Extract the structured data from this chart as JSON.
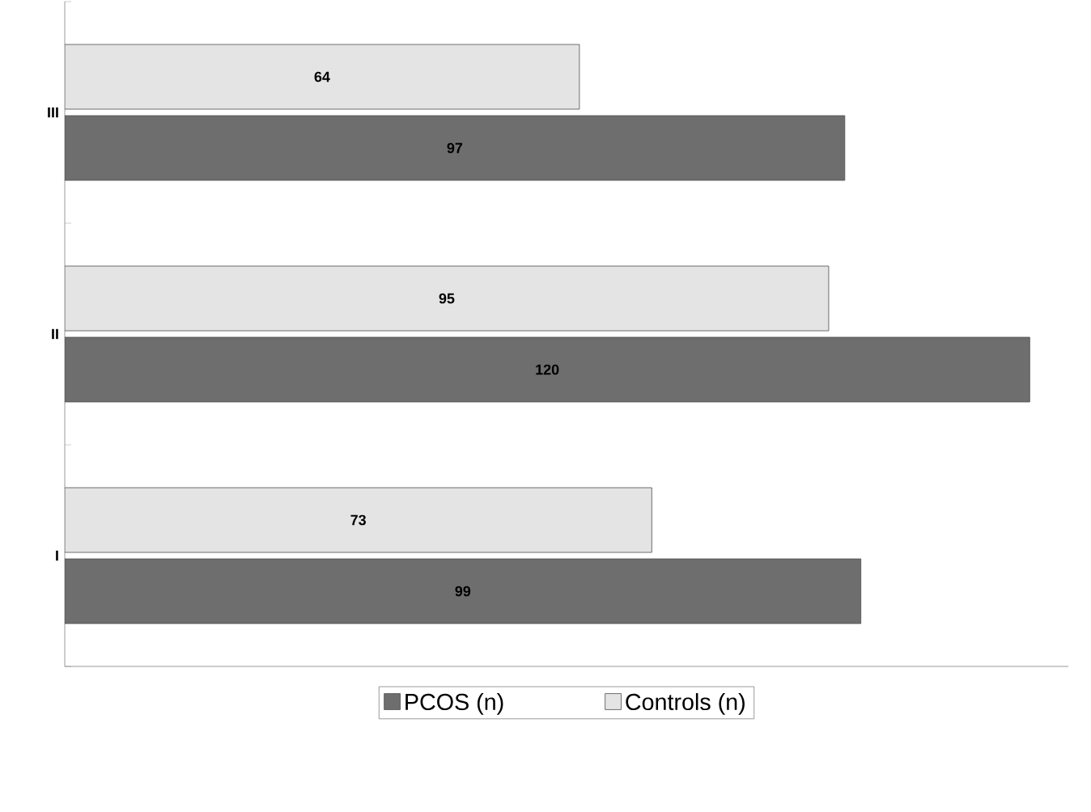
{
  "chart_data": {
    "type": "bar",
    "orientation": "horizontal",
    "categories": [
      "III",
      "II",
      "I"
    ],
    "series": [
      {
        "name": "PCOS (n)",
        "color": "#6e6e6e",
        "values": [
          97,
          120,
          99
        ]
      },
      {
        "name": "Controls (n)",
        "color": "#e4e4e4",
        "values": [
          64,
          95,
          73
        ]
      }
    ],
    "data_labels": true,
    "legend": "bottom"
  }
}
